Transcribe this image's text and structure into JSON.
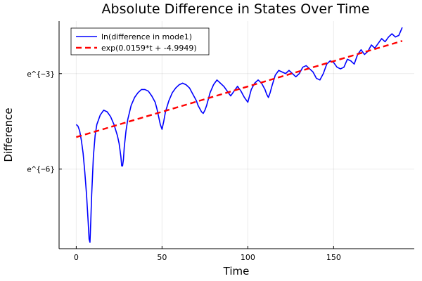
{
  "chart_data": {
    "type": "line",
    "title": "Absolute Difference in States Over Time",
    "xlabel": "Time",
    "ylabel": "Difference",
    "xlim": [
      -10,
      197
    ],
    "ylim": [
      -8.5,
      -1.35
    ],
    "log_scale_y": "natural log (ticks shown as e^{n})",
    "grid": true,
    "legend_position": "top-left",
    "x_ticks": [
      {
        "value": 0,
        "label": "0"
      },
      {
        "value": 50,
        "label": "50"
      },
      {
        "value": 100,
        "label": "100"
      },
      {
        "value": 150,
        "label": "150"
      }
    ],
    "y_ticks": [
      {
        "value": -3,
        "label": "e^{−3}"
      },
      {
        "value": -6,
        "label": "e^{−6}"
      }
    ],
    "series": [
      {
        "name": "ln(difference in mode1)",
        "color": "#0000ff",
        "style": "solid",
        "x": [
          0,
          1,
          2,
          3,
          4,
          5,
          6,
          7,
          7.5,
          8,
          8.5,
          9,
          10,
          11,
          12,
          14,
          16,
          18,
          20,
          22,
          24,
          25,
          26,
          26.5,
          27,
          27.5,
          28,
          29,
          30,
          32,
          34,
          36,
          38,
          40,
          42,
          44,
          46,
          47,
          48,
          49,
          50,
          51,
          52,
          54,
          56,
          58,
          60,
          62,
          64,
          66,
          68,
          70,
          71,
          72,
          73,
          74,
          75,
          76,
          77,
          78,
          80,
          82,
          84,
          86,
          88,
          90,
          92,
          94,
          96,
          98,
          100,
          102,
          104,
          106,
          108,
          110,
          111,
          112,
          113,
          114,
          116,
          118,
          120,
          122,
          124,
          126,
          128,
          130,
          132,
          134,
          136,
          138,
          140,
          142,
          144,
          146,
          148,
          150,
          152,
          154,
          156,
          158,
          160,
          162,
          164,
          166,
          168,
          170,
          172,
          174,
          176,
          178,
          180,
          182,
          184,
          186,
          188,
          190
        ],
        "y": [
          -4.6,
          -4.65,
          -4.8,
          -5.1,
          -5.5,
          -6.1,
          -6.8,
          -7.7,
          -8.2,
          -8.3,
          -7.6,
          -6.8,
          -5.6,
          -4.95,
          -4.6,
          -4.3,
          -4.15,
          -4.2,
          -4.35,
          -4.6,
          -4.95,
          -5.2,
          -5.6,
          -5.9,
          -5.9,
          -5.7,
          -5.3,
          -4.8,
          -4.45,
          -4.0,
          -3.75,
          -3.6,
          -3.5,
          -3.5,
          -3.55,
          -3.7,
          -3.9,
          -4.1,
          -4.35,
          -4.6,
          -4.75,
          -4.5,
          -4.2,
          -3.85,
          -3.6,
          -3.45,
          -3.35,
          -3.3,
          -3.35,
          -3.45,
          -3.65,
          -3.85,
          -4.0,
          -4.1,
          -4.2,
          -4.25,
          -4.15,
          -4.0,
          -3.8,
          -3.6,
          -3.35,
          -3.2,
          -3.3,
          -3.4,
          -3.55,
          -3.7,
          -3.55,
          -3.4,
          -3.55,
          -3.75,
          -3.9,
          -3.5,
          -3.3,
          -3.2,
          -3.3,
          -3.5,
          -3.65,
          -3.75,
          -3.6,
          -3.4,
          -3.05,
          -2.9,
          -2.95,
          -3.0,
          -2.9,
          -3.0,
          -3.1,
          -3.0,
          -2.8,
          -2.75,
          -2.85,
          -2.95,
          -3.15,
          -3.2,
          -3.0,
          -2.7,
          -2.6,
          -2.65,
          -2.8,
          -2.85,
          -2.8,
          -2.55,
          -2.6,
          -2.7,
          -2.4,
          -2.25,
          -2.4,
          -2.3,
          -2.1,
          -2.2,
          -2.05,
          -1.9,
          -2.0,
          -1.85,
          -1.75,
          -1.85,
          -1.8,
          -1.55
        ]
      },
      {
        "name": "exp(0.0159*t + -4.9949)",
        "color": "#ff0000",
        "style": "dashed",
        "x": [
          0,
          190
        ],
        "y": [
          -4.9949,
          -1.9739
        ]
      }
    ]
  }
}
